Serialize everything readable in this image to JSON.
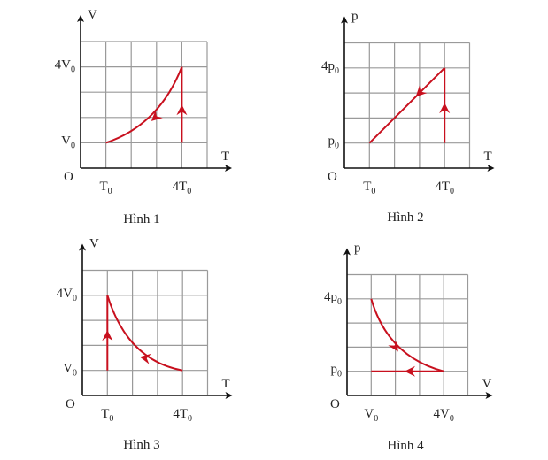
{
  "colors": {
    "curve": "#c8101e",
    "grid": "#9a9a9a",
    "axis": "#111111"
  },
  "figures": [
    {
      "caption": "Hình 1",
      "x_axis": "T",
      "y_axis": "V",
      "origin": "O",
      "x_ticks": [
        {
          "value": 1,
          "main": "T",
          "sub": "0"
        },
        {
          "value": 4,
          "main": "4T",
          "sub": "0"
        }
      ],
      "y_ticks": [
        {
          "value": 1,
          "main": "V",
          "sub": "0"
        },
        {
          "value": 4,
          "main": "4V",
          "sub": "0"
        }
      ],
      "paths": [
        {
          "type": "line",
          "points": [
            [
              4,
              1
            ],
            [
              4,
              4
            ]
          ],
          "arrow_at": [
            4,
            2.3
          ],
          "arrow_dir": [
            0,
            1
          ]
        },
        {
          "type": "curve",
          "points": [
            [
              4,
              4
            ],
            [
              3.1,
              1.7
            ],
            [
              1,
              1
            ]
          ],
          "arrow_at": [
            2.95,
            2.0
          ],
          "arrow_dir": [
            -1,
            -0.9
          ]
        }
      ]
    },
    {
      "caption": "Hình 2",
      "x_axis": "T",
      "y_axis": "p",
      "origin": "O",
      "x_ticks": [
        {
          "value": 1,
          "main": "T",
          "sub": "0"
        },
        {
          "value": 4,
          "main": "4T",
          "sub": "0"
        }
      ],
      "y_ticks": [
        {
          "value": 1,
          "main": "p",
          "sub": "0"
        },
        {
          "value": 4,
          "main": "4p",
          "sub": "0"
        }
      ],
      "paths": [
        {
          "type": "line",
          "points": [
            [
              4,
              1
            ],
            [
              4,
              4
            ]
          ],
          "arrow_at": [
            4,
            2.4
          ],
          "arrow_dir": [
            0,
            1
          ]
        },
        {
          "type": "line",
          "points": [
            [
              4,
              4
            ],
            [
              1,
              1
            ]
          ],
          "arrow_at": [
            3.0,
            3.0
          ],
          "arrow_dir": [
            -1,
            -1
          ]
        }
      ]
    },
    {
      "caption": "Hình 3",
      "x_axis": "T",
      "y_axis": "V",
      "origin": "O",
      "x_ticks": [
        {
          "value": 1,
          "main": "T",
          "sub": "0"
        },
        {
          "value": 4,
          "main": "4T",
          "sub": "0"
        }
      ],
      "y_ticks": [
        {
          "value": 1,
          "main": "V",
          "sub": "0"
        },
        {
          "value": 4,
          "main": "4V",
          "sub": "0"
        }
      ],
      "paths": [
        {
          "type": "line",
          "points": [
            [
              1,
              1
            ],
            [
              1,
              4
            ]
          ],
          "arrow_at": [
            1,
            2.4
          ],
          "arrow_dir": [
            0,
            1
          ]
        },
        {
          "type": "curve",
          "points": [
            [
              4,
              1
            ],
            [
              1.8,
              1.4
            ],
            [
              1,
              4
            ]
          ],
          "arrow_at": [
            2.5,
            1.5
          ],
          "arrow_dir": [
            -1,
            0.2
          ]
        }
      ]
    },
    {
      "caption": "Hình 4",
      "x_axis": "V",
      "y_axis": "p",
      "origin": "O",
      "x_ticks": [
        {
          "value": 1,
          "main": "V",
          "sub": "0"
        },
        {
          "value": 4,
          "main": "4V",
          "sub": "0"
        }
      ],
      "y_ticks": [
        {
          "value": 1,
          "main": "p",
          "sub": "0"
        },
        {
          "value": 4,
          "main": "4p",
          "sub": "0"
        }
      ],
      "paths": [
        {
          "type": "curve",
          "points": [
            [
              1,
              4
            ],
            [
              1.7,
              1.6
            ],
            [
              4,
              1
            ]
          ],
          "arrow_at": [
            2.0,
            2.0
          ],
          "arrow_dir": [
            0.6,
            -1
          ]
        },
        {
          "type": "line",
          "points": [
            [
              4,
              1
            ],
            [
              1,
              1
            ]
          ],
          "arrow_at": [
            2.6,
            1
          ],
          "arrow_dir": [
            -1,
            0
          ]
        }
      ]
    }
  ]
}
